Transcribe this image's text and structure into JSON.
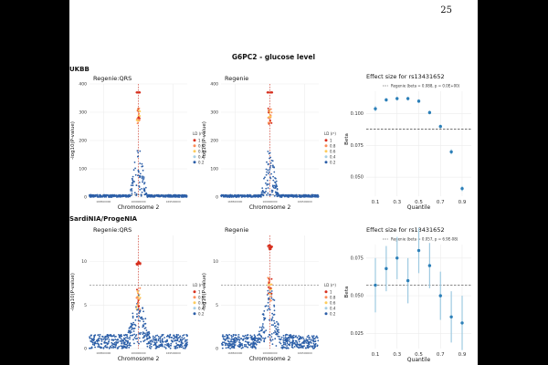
{
  "page_number": "25",
  "figure_title": "G6PC2 - glucose level",
  "colors": {
    "ld1": "#d7301f",
    "ld08": "#fc8d59",
    "ld06": "#fdcc5c",
    "ld04": "#a6cee3",
    "ld02": "#2c5fa8",
    "effect": "#2c7fb8"
  },
  "rows": [
    {
      "label": "UKBB",
      "manhattan": [
        {
          "title": "Regenie:QRS",
          "ylabel": "-log10(P-value)",
          "xlabel": "Chromosome 2",
          "yticks": [
            "0",
            "100",
            "200",
            "300",
            "400"
          ],
          "xticks": [
            "168500000",
            "169000000",
            "169500000"
          ],
          "legend_title": "LD (r²)",
          "legend_items": [
            "1",
            "0.8",
            "0.6",
            "0.4",
            "0.2"
          ]
        },
        {
          "title": "Regenie",
          "ylabel": "-log10(P-value)",
          "xlabel": "Chromosome 2",
          "yticks": [
            "0",
            "100",
            "200",
            "300",
            "400"
          ],
          "xticks": [
            "168500000",
            "169000000",
            "169500000"
          ],
          "legend_title": "LD (r²)",
          "legend_items": [
            "1",
            "0.8",
            "0.6",
            "0.4",
            "0.2"
          ]
        }
      ],
      "effect": {
        "title": "Effect size for rs13431652",
        "legend": "Regenie (beta = 0.088, p = 0.0E+00)",
        "ylabel": "Beta",
        "xlabel": "Quantile",
        "yticks": [
          "0.050",
          "0.075",
          "0.100"
        ],
        "xticks": [
          "0.1",
          "0.3",
          "0.5",
          "0.7",
          "0.9"
        ]
      }
    },
    {
      "label": "SardiNIA/ProgeNIA",
      "manhattan": [
        {
          "title": "Regenie:QRS",
          "ylabel": "-log10(P-value)",
          "xlabel": "Chromosome 2",
          "yticks": [
            "0",
            "5",
            "10"
          ],
          "xticks": [
            "168500000",
            "169000000",
            "169500000"
          ],
          "legend_title": "LD (r²)",
          "legend_items": [
            "1",
            "0.8",
            "0.6",
            "0.4",
            "0.2"
          ]
        },
        {
          "title": "Regenie",
          "ylabel": "-log10(P-value)",
          "xlabel": "Chromosome 2",
          "yticks": [
            "0",
            "5",
            "10"
          ],
          "xticks": [
            "168500000",
            "169000000",
            "169500000"
          ],
          "legend_title": "LD (r²)",
          "legend_items": [
            "1",
            "0.8",
            "0.6",
            "0.4",
            "0.2"
          ]
        }
      ],
      "effect": {
        "title": "Effect size for rs13431652",
        "legend": "Regenie (beta = 0.057, p = 6.9E-08)",
        "ylabel": "Beta",
        "xlabel": "Quantile",
        "yticks": [
          "0.025",
          "0.050",
          "0.075"
        ],
        "xticks": [
          "0.1",
          "0.3",
          "0.5",
          "0.7",
          "0.9"
        ]
      }
    }
  ],
  "chart_data": [
    {
      "type": "scatter",
      "title": "UKBB Regenie:QRS",
      "xlabel": "Chromosome 2",
      "ylabel": "-log10(P-value)",
      "xlim": [
        168300000,
        169700000
      ],
      "ylim": [
        0,
        400
      ],
      "lead_snp_x": 169000000,
      "peak": 370
    },
    {
      "type": "scatter",
      "title": "UKBB Regenie",
      "xlabel": "Chromosome 2",
      "ylabel": "-log10(P-value)",
      "xlim": [
        168300000,
        169700000
      ],
      "ylim": [
        0,
        400
      ],
      "lead_snp_x": 169000000,
      "peak": 370
    },
    {
      "type": "scatter",
      "title": "UKBB Effect size for rs13431652",
      "xlabel": "Quantile",
      "ylabel": "Beta",
      "ylim": [
        0.035,
        0.125
      ],
      "hline": 0.088,
      "x": [
        0.1,
        0.2,
        0.3,
        0.4,
        0.5,
        0.6,
        0.7,
        0.8,
        0.9
      ],
      "values": [
        0.104,
        0.111,
        0.112,
        0.112,
        0.11,
        0.101,
        0.09,
        0.07,
        0.041
      ],
      "err": [
        0.002,
        0.0015,
        0.0015,
        0.0015,
        0.0015,
        0.0015,
        0.0015,
        0.002,
        0.002
      ]
    },
    {
      "type": "scatter",
      "title": "SardiNIA/ProgeNIA Regenie:QRS",
      "xlabel": "Chromosome 2",
      "ylabel": "-log10(P-value)",
      "xlim": [
        168300000,
        169700000
      ],
      "ylim": [
        0,
        13
      ],
      "lead_snp_x": 169000000,
      "peak": 10
    },
    {
      "type": "scatter",
      "title": "SardiNIA/ProgeNIA Regenie",
      "xlabel": "Chromosome 2",
      "ylabel": "-log10(P-value)",
      "xlim": [
        168300000,
        169700000
      ],
      "ylim": [
        0,
        13
      ],
      "lead_snp_x": 169000000,
      "peak": 12
    },
    {
      "type": "scatter",
      "title": "SardiNIA/ProgeNIA Effect size for rs13431652",
      "xlabel": "Quantile",
      "ylabel": "Beta",
      "ylim": [
        0.015,
        0.09
      ],
      "hline": 0.057,
      "x": [
        0.1,
        0.2,
        0.3,
        0.4,
        0.5,
        0.6,
        0.7,
        0.8,
        0.9
      ],
      "values": [
        0.057,
        0.068,
        0.075,
        0.06,
        0.08,
        0.07,
        0.05,
        0.036,
        0.032
      ],
      "err": [
        0.018,
        0.015,
        0.014,
        0.015,
        0.015,
        0.015,
        0.016,
        0.017,
        0.018
      ]
    }
  ]
}
